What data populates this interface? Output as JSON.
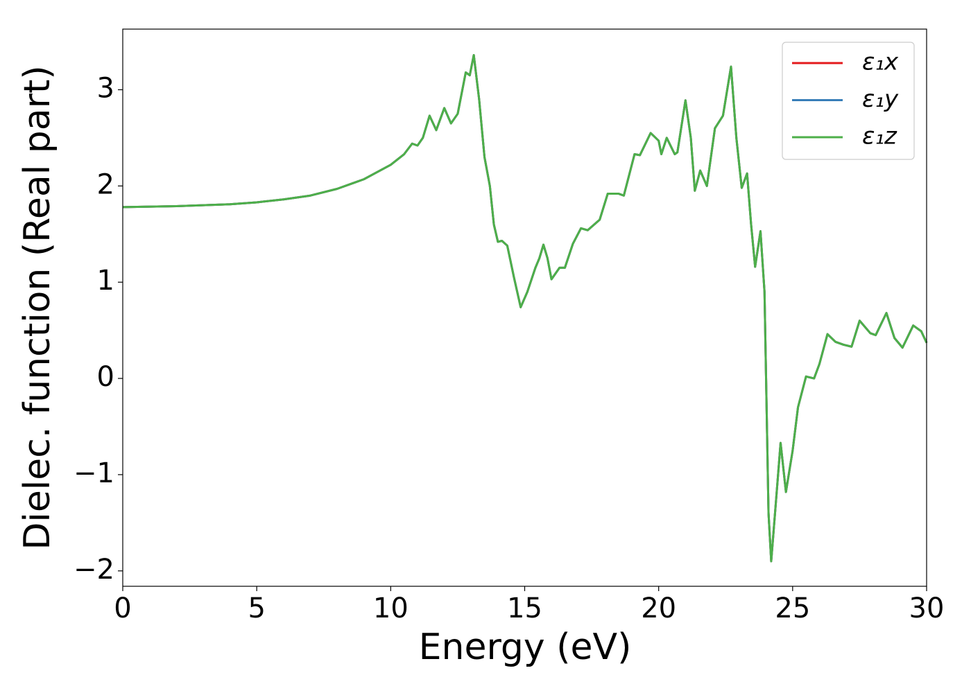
{
  "chart_data": {
    "type": "line",
    "xlabel": "Energy (eV)",
    "ylabel": "Dielec. function (Real part)",
    "x": [
      0,
      2,
      4,
      5,
      6,
      7,
      8,
      9,
      10,
      10.5,
      10.8,
      11.0,
      11.2,
      11.45,
      11.7,
      12.0,
      12.25,
      12.5,
      12.8,
      12.95,
      13.1,
      13.3,
      13.5,
      13.7,
      13.85,
      14.0,
      14.15,
      14.35,
      14.6,
      14.85,
      15.1,
      15.4,
      15.55,
      15.7,
      15.85,
      16.0,
      16.3,
      16.5,
      16.8,
      17.1,
      17.35,
      17.8,
      18.1,
      18.5,
      18.7,
      19.1,
      19.3,
      19.7,
      20.0,
      20.1,
      20.3,
      20.6,
      20.7,
      21.0,
      21.2,
      21.35,
      21.55,
      21.8,
      22.1,
      22.4,
      22.7,
      22.9,
      23.1,
      23.3,
      23.45,
      23.6,
      23.8,
      23.95,
      24.1,
      24.2,
      24.4,
      24.55,
      24.75,
      25.0,
      25.2,
      25.5,
      25.8,
      26.0,
      26.3,
      26.6,
      26.9,
      27.2,
      27.5,
      27.9,
      28.1,
      28.5,
      28.8,
      29.1,
      29.5,
      29.8,
      30.0
    ],
    "series": [
      {
        "name": "ε₁x",
        "color": "#e41a1c",
        "values": [
          1.78,
          1.79,
          1.81,
          1.83,
          1.86,
          1.9,
          1.97,
          2.07,
          2.22,
          2.33,
          2.44,
          2.42,
          2.5,
          2.73,
          2.58,
          2.81,
          2.65,
          2.75,
          3.18,
          3.15,
          3.36,
          2.9,
          2.3,
          2.0,
          1.6,
          1.42,
          1.43,
          1.38,
          1.05,
          0.74,
          0.9,
          1.15,
          1.25,
          1.39,
          1.25,
          1.03,
          1.15,
          1.15,
          1.4,
          1.56,
          1.54,
          1.65,
          1.92,
          1.92,
          1.9,
          2.33,
          2.32,
          2.55,
          2.47,
          2.33,
          2.5,
          2.33,
          2.35,
          2.89,
          2.5,
          1.95,
          2.16,
          2.0,
          2.6,
          2.73,
          3.24,
          2.5,
          1.98,
          2.13,
          1.6,
          1.16,
          1.53,
          0.9,
          -1.4,
          -1.9,
          -1.2,
          -0.67,
          -1.18,
          -0.75,
          -0.3,
          0.02,
          0.0,
          0.15,
          0.46,
          0.38,
          0.35,
          0.33,
          0.6,
          0.47,
          0.45,
          0.68,
          0.42,
          0.32,
          0.55,
          0.49,
          0.37
        ]
      },
      {
        "name": "ε₁y",
        "color": "#377eb8",
        "values": [
          1.78,
          1.79,
          1.81,
          1.83,
          1.86,
          1.9,
          1.97,
          2.07,
          2.22,
          2.33,
          2.44,
          2.42,
          2.5,
          2.73,
          2.58,
          2.81,
          2.65,
          2.75,
          3.18,
          3.15,
          3.36,
          2.9,
          2.3,
          2.0,
          1.6,
          1.42,
          1.43,
          1.38,
          1.05,
          0.74,
          0.9,
          1.15,
          1.25,
          1.39,
          1.25,
          1.03,
          1.15,
          1.15,
          1.4,
          1.56,
          1.54,
          1.65,
          1.92,
          1.92,
          1.9,
          2.33,
          2.32,
          2.55,
          2.47,
          2.33,
          2.5,
          2.33,
          2.35,
          2.89,
          2.5,
          1.95,
          2.16,
          2.0,
          2.6,
          2.73,
          3.24,
          2.5,
          1.98,
          2.13,
          1.6,
          1.16,
          1.53,
          0.9,
          -1.4,
          -1.9,
          -1.2,
          -0.67,
          -1.18,
          -0.75,
          -0.3,
          0.02,
          0.0,
          0.15,
          0.46,
          0.38,
          0.35,
          0.33,
          0.6,
          0.47,
          0.45,
          0.68,
          0.42,
          0.32,
          0.55,
          0.49,
          0.37
        ]
      },
      {
        "name": "ε₁z",
        "color": "#4daf4a",
        "values": [
          1.78,
          1.79,
          1.81,
          1.83,
          1.86,
          1.9,
          1.97,
          2.07,
          2.22,
          2.33,
          2.44,
          2.42,
          2.5,
          2.73,
          2.58,
          2.81,
          2.65,
          2.75,
          3.18,
          3.15,
          3.36,
          2.9,
          2.3,
          2.0,
          1.6,
          1.42,
          1.43,
          1.38,
          1.05,
          0.74,
          0.9,
          1.15,
          1.25,
          1.39,
          1.25,
          1.03,
          1.15,
          1.15,
          1.4,
          1.56,
          1.54,
          1.65,
          1.92,
          1.92,
          1.9,
          2.33,
          2.32,
          2.55,
          2.47,
          2.33,
          2.5,
          2.33,
          2.35,
          2.89,
          2.5,
          1.95,
          2.16,
          2.0,
          2.6,
          2.73,
          3.24,
          2.5,
          1.98,
          2.13,
          1.6,
          1.16,
          1.53,
          0.9,
          -1.4,
          -1.9,
          -1.2,
          -0.67,
          -1.18,
          -0.75,
          -0.3,
          0.02,
          0.0,
          0.15,
          0.46,
          0.38,
          0.35,
          0.33,
          0.6,
          0.47,
          0.45,
          0.68,
          0.42,
          0.32,
          0.55,
          0.49,
          0.37
        ]
      }
    ],
    "xlim": [
      0,
      30
    ],
    "xticks": [
      0,
      5,
      10,
      15,
      20,
      25,
      30
    ],
    "ylim": [
      -2.16,
      3.63
    ],
    "yticks": [
      {
        "value": -2,
        "label": "−2"
      },
      {
        "value": -1,
        "label": "−1"
      },
      0,
      1,
      2,
      3
    ],
    "grid": false,
    "legend": "upper right"
  }
}
